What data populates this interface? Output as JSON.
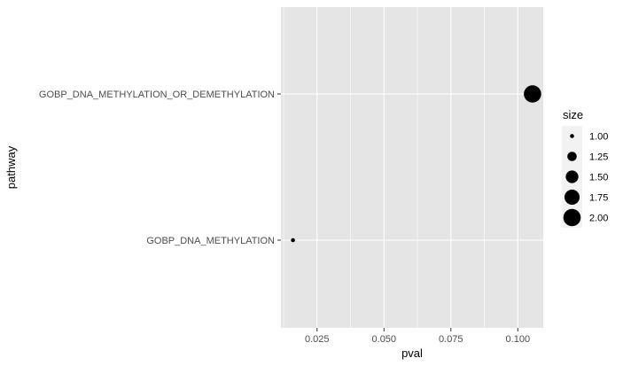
{
  "chart_data": {
    "type": "scatter",
    "title": "",
    "xlabel": "pval",
    "ylabel": "pathway",
    "xlim": [
      0.0115,
      0.1095
    ],
    "x_ticks": [
      0.025,
      0.05,
      0.075,
      0.1
    ],
    "x_tick_labels": [
      "0.025",
      "0.050",
      "0.075",
      "0.100"
    ],
    "categories": [
      "GOBP_DNA_METHYLATION_OR_DEMETHYLATION",
      "GOBP_DNA_METHYLATION"
    ],
    "points": [
      {
        "pathway": "GOBP_DNA_METHYLATION_OR_DEMETHYLATION",
        "pval": 0.1055,
        "size": 2
      },
      {
        "pathway": "GOBP_DNA_METHYLATION",
        "pval": 0.016,
        "size": 1
      }
    ],
    "grid": true,
    "legend": {
      "title": "size",
      "placement": "right",
      "values": [
        1.0,
        1.25,
        1.5,
        1.75,
        2.0
      ],
      "labels": [
        "1.00",
        "1.25",
        "1.50",
        "1.75",
        "2.00"
      ]
    },
    "colors": {
      "panel": "#e5e5e5",
      "grid": "#ffffff",
      "point": "#000000",
      "legend_key": "#f2f2f2"
    }
  }
}
